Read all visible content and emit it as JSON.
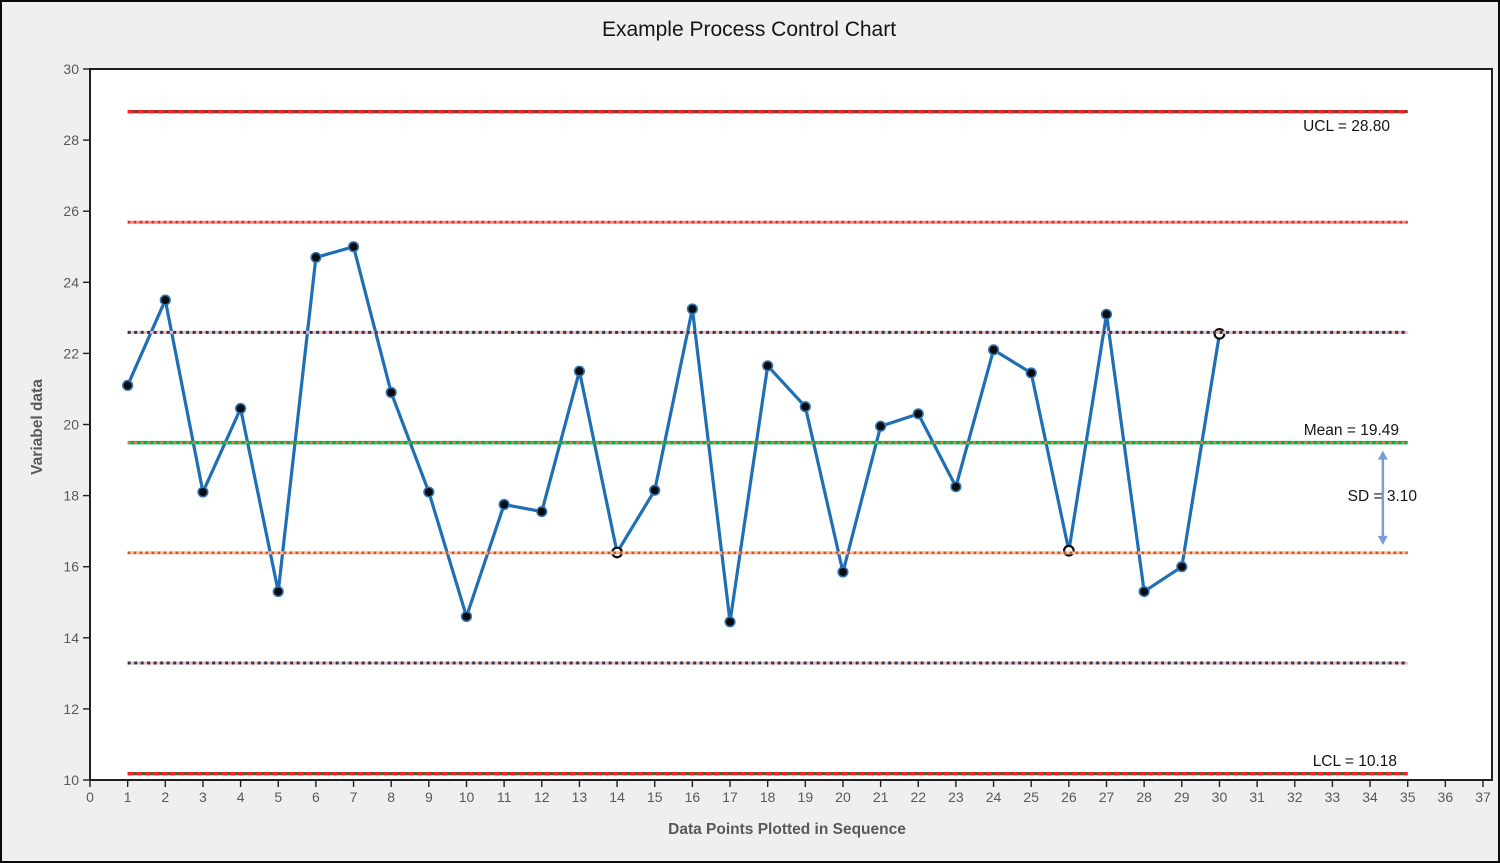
{
  "window": {
    "background_color": "#EFEFF0",
    "border_color": "#0A0A0A"
  },
  "chart_data": {
    "type": "line",
    "title": "Example Process Control Chart",
    "xlabel": "Data Points Plotted in Sequence",
    "ylabel": "Variabel data",
    "xlim": [
      0,
      37
    ],
    "ylim": [
      10,
      30
    ],
    "x_tick_step": 1,
    "y_tick_step": 2,
    "grid": false,
    "legend": "none",
    "x": [
      1,
      2,
      3,
      4,
      5,
      6,
      7,
      8,
      9,
      10,
      11,
      12,
      13,
      14,
      15,
      16,
      17,
      18,
      19,
      20,
      21,
      22,
      23,
      24,
      25,
      26,
      27,
      28,
      29,
      30
    ],
    "values": [
      21.1,
      23.5,
      18.1,
      20.45,
      15.3,
      24.7,
      25.0,
      20.9,
      18.1,
      14.6,
      17.75,
      17.55,
      21.5,
      16.4,
      18.15,
      23.25,
      14.45,
      21.65,
      20.5,
      15.85,
      19.95,
      20.3,
      18.25,
      22.1,
      21.45,
      16.45,
      23.1,
      15.3,
      16.0,
      22.55
    ],
    "open_marker_x": [
      14,
      26,
      30
    ],
    "mean": 19.49,
    "sd": 3.1,
    "ucl": 28.8,
    "lcl": 10.18,
    "line_span_x": [
      1,
      35
    ],
    "control_lines": [
      {
        "name": "UCL",
        "value": 28.8,
        "base_color": "#4A4A4A",
        "base_width": 3.2,
        "accent_color": "#FE2020",
        "accent_width": 3.2,
        "accent_dash": "7 3"
      },
      {
        "name": "+2SD",
        "value": 25.69,
        "base_color": "#FF8C85",
        "base_width": 3.0,
        "accent_color": "#D93025",
        "accent_width": 2.6,
        "accent_dash": "2.5 3.5"
      },
      {
        "name": "+1SD",
        "value": 22.59,
        "base_color": "#FFB4AC",
        "base_width": 3.0,
        "accent_color": "#1F3864",
        "accent_width": 3.0,
        "accent_dash": "3 3.5"
      },
      {
        "name": "Mean",
        "value": 19.49,
        "base_color": "#00B050",
        "base_width": 3.4,
        "accent_color": "#ED7D31",
        "accent_width": 2.5,
        "accent_dash": "3 3.5"
      },
      {
        "name": "-1SD",
        "value": 16.39,
        "base_color": "#FFB4AC",
        "base_width": 3.0,
        "accent_color": "#BF6000",
        "accent_width": 2.6,
        "accent_dash": "2.5 3.5"
      },
      {
        "name": "-2SD",
        "value": 13.29,
        "base_color": "#FFB4AC",
        "base_width": 3.0,
        "accent_color": "#1F3864",
        "accent_width": 3.0,
        "accent_dash": "3 3.5"
      },
      {
        "name": "LCL",
        "value": 10.18,
        "base_color": "#1E7145",
        "base_width": 3.2,
        "accent_color": "#FE2020",
        "accent_width": 3.2,
        "accent_dash": "6 2.5"
      }
    ],
    "annotations": [
      {
        "id": "ucl",
        "text": "UCL = 28.80"
      },
      {
        "id": "mean",
        "text": "Mean = 19.49"
      },
      {
        "id": "sd",
        "text": "SD = 3.10"
      },
      {
        "id": "lcl",
        "text": "LCL = 10.18"
      }
    ],
    "sd_arrow": {
      "x": 34.34,
      "from_value": 19.49,
      "to_value": 16.39,
      "color": "#7C9BD9"
    }
  },
  "series_style": {
    "line_color": "#1F6FB5",
    "marker_fill": "#0B0B0B",
    "marker_ring": "#2E75B6",
    "open_marker_fill": "#FFFFFF",
    "open_marker_ring": "#0B0B0B"
  },
  "axes_style": {
    "plot_fill": "#FFFFFF",
    "plot_border": "#1F1F1F",
    "tick_color": "#1F1F1F",
    "tick_label_color": "#595959"
  }
}
